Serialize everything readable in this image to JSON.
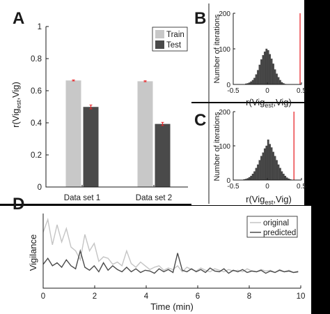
{
  "panel_labels": {
    "a": "A",
    "b": "B",
    "c": "C",
    "d": "D"
  },
  "chart_data": [
    {
      "panel": "A",
      "type": "bar",
      "ylabel_main": "r(Vig",
      "ylabel_sub": "est",
      "ylabel_tail": ",Vig)",
      "ylim": [
        0,
        1
      ],
      "yticks": [
        "0",
        "0.2",
        "0.4",
        "0.6",
        "0.8",
        "1"
      ],
      "categories": [
        "Data set 1",
        "Data set 2"
      ],
      "series": [
        {
          "name": "Train",
          "color": "#c8c8c8",
          "values": [
            0.664,
            0.659
          ],
          "errors": [
            0.003,
            0.003
          ]
        },
        {
          "name": "Test",
          "color": "#4a4a4a",
          "values": [
            0.499,
            0.393
          ],
          "errors": [
            0.012,
            0.01
          ]
        }
      ],
      "error_color": "#e8262a",
      "legend_position": "top-right"
    },
    {
      "panel": "B",
      "type": "bar",
      "ylabel": "Number of iterations",
      "xlabel_main": "r(Vig",
      "xlabel_sub": "est",
      "xlabel_tail": ",Vig)",
      "xlim": [
        -0.5,
        0.5
      ],
      "ylim": [
        0,
        200
      ],
      "xticks": [
        "-0.5",
        "0",
        "0.5"
      ],
      "yticks": [
        "0",
        "100",
        "200"
      ],
      "bin_width": 0.025,
      "bin_centers": [
        -0.3125,
        -0.2875,
        -0.2625,
        -0.2375,
        -0.2125,
        -0.1875,
        -0.1625,
        -0.1375,
        -0.1125,
        -0.0875,
        -0.0625,
        -0.0375,
        -0.0125,
        0.0125,
        0.0375,
        0.0625,
        0.0875,
        0.1125,
        0.1375,
        0.1625,
        0.1875,
        0.2125,
        0.2375,
        0.2625
      ],
      "counts": [
        2,
        3,
        5,
        8,
        12,
        18,
        28,
        40,
        55,
        70,
        82,
        92,
        100,
        96,
        85,
        72,
        58,
        42,
        30,
        20,
        12,
        6,
        3,
        1
      ],
      "marker_x": 0.48,
      "marker_color": "#e8262a"
    },
    {
      "panel": "C",
      "type": "bar",
      "ylabel": "Number of iterations",
      "xlabel_main": "r(Vig",
      "xlabel_sub": "est",
      "xlabel_tail": ",Vig)",
      "xlim": [
        -0.5,
        0.5
      ],
      "ylim": [
        0,
        200
      ],
      "xticks": [
        "-0.5",
        "0",
        "0.5"
      ],
      "yticks": [
        "0",
        "100",
        "200"
      ],
      "bin_width": 0.025,
      "bin_centers": [
        -0.3375,
        -0.3125,
        -0.2875,
        -0.2625,
        -0.2375,
        -0.2125,
        -0.1875,
        -0.1625,
        -0.1375,
        -0.1125,
        -0.0875,
        -0.0625,
        -0.0375,
        -0.0125,
        0.0125,
        0.0375,
        0.0625,
        0.0875,
        0.1125,
        0.1375,
        0.1625,
        0.1875,
        0.2125,
        0.2375,
        0.2625,
        0.2875,
        0.3125,
        0.3375
      ],
      "counts": [
        2,
        3,
        5,
        8,
        12,
        18,
        25,
        35,
        45,
        58,
        70,
        80,
        92,
        100,
        118,
        105,
        95,
        82,
        70,
        58,
        45,
        35,
        25,
        18,
        12,
        7,
        4,
        2
      ],
      "marker_x": 0.39,
      "marker_color": "#e8262a"
    },
    {
      "panel": "D",
      "type": "line",
      "ylabel": "Vigilance",
      "xlabel": "Time (min)",
      "xlim": [
        0,
        10
      ],
      "xticks": [
        "0",
        "2",
        "4",
        "6",
        "8",
        "10"
      ],
      "legend_position": "top-right",
      "series": [
        {
          "name": "original",
          "color": "#c4c4c4",
          "x": [
            0,
            0.18,
            0.36,
            0.54,
            0.72,
            0.9,
            1.08,
            1.26,
            1.44,
            1.62,
            1.8,
            1.98,
            2.16,
            2.34,
            2.52,
            2.7,
            2.88,
            3.06,
            3.24,
            3.42,
            3.6,
            3.78,
            3.96,
            4.14,
            4.32,
            4.5,
            4.68,
            4.86,
            5.04,
            5.22,
            5.4,
            5.58,
            5.76,
            5.94,
            6.12,
            6.3,
            6.48,
            6.66,
            6.84,
            7.02,
            7.2,
            7.38,
            7.56,
            7.74,
            7.92,
            8.1,
            8.28,
            8.46,
            8.64,
            8.82,
            9,
            9.18,
            9.36,
            9.54,
            9.72,
            9.9
          ],
          "y": [
            0.75,
            0.92,
            0.58,
            0.85,
            0.62,
            0.8,
            0.55,
            0.5,
            0.38,
            0.72,
            0.5,
            0.6,
            0.36,
            0.42,
            0.4,
            0.32,
            0.35,
            0.3,
            0.5,
            0.33,
            0.28,
            0.35,
            0.3,
            0.25,
            0.28,
            0.3,
            0.24,
            0.27,
            0.25,
            0.3,
            0.22,
            0.28,
            0.25,
            0.23,
            0.27,
            0.24,
            0.22,
            0.26,
            0.24,
            0.22,
            0.25,
            0.23,
            0.24,
            0.22,
            0.26,
            0.23,
            0.22,
            0.25,
            0.23,
            0.24,
            0.21,
            0.25,
            0.22,
            0.24,
            0.21,
            0.23
          ]
        },
        {
          "name": "predicted",
          "color": "#4a4a4a",
          "x": [
            0,
            0.18,
            0.36,
            0.54,
            0.72,
            0.9,
            1.08,
            1.26,
            1.44,
            1.62,
            1.8,
            1.98,
            2.16,
            2.34,
            2.52,
            2.7,
            2.88,
            3.06,
            3.24,
            3.42,
            3.6,
            3.78,
            3.96,
            4.14,
            4.32,
            4.5,
            4.68,
            4.86,
            5.04,
            5.22,
            5.4,
            5.58,
            5.76,
            5.94,
            6.12,
            6.3,
            6.48,
            6.66,
            6.84,
            7.02,
            7.2,
            7.38,
            7.56,
            7.74,
            7.92,
            8.1,
            8.28,
            8.46,
            8.64,
            8.82,
            9,
            9.18,
            9.36,
            9.54,
            9.72,
            9.9
          ],
          "y": [
            0.32,
            0.4,
            0.3,
            0.34,
            0.28,
            0.38,
            0.3,
            0.26,
            0.5,
            0.28,
            0.24,
            0.3,
            0.22,
            0.34,
            0.24,
            0.3,
            0.25,
            0.22,
            0.28,
            0.22,
            0.26,
            0.21,
            0.24,
            0.23,
            0.2,
            0.26,
            0.22,
            0.25,
            0.21,
            0.47,
            0.24,
            0.22,
            0.26,
            0.22,
            0.25,
            0.21,
            0.27,
            0.23,
            0.22,
            0.26,
            0.2,
            0.24,
            0.22,
            0.25,
            0.21,
            0.23,
            0.22,
            0.24,
            0.2,
            0.23,
            0.21,
            0.24,
            0.22,
            0.23,
            0.21,
            0.22
          ]
        }
      ]
    }
  ]
}
